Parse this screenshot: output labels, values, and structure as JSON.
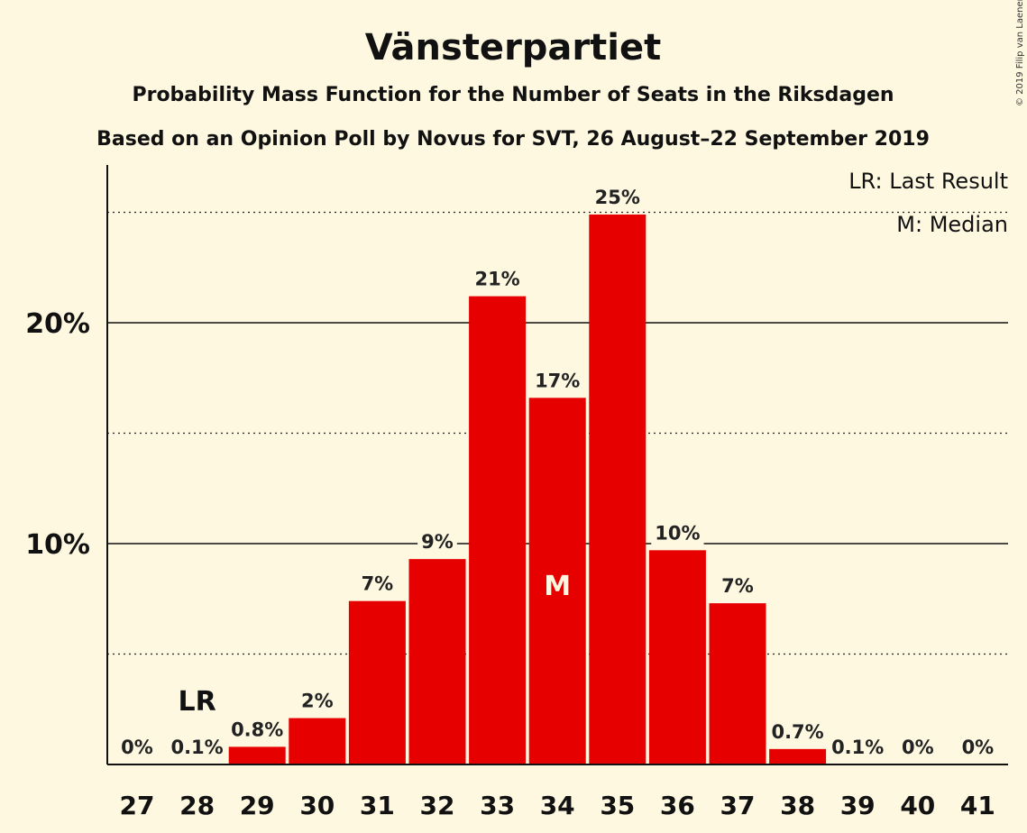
{
  "title": "Vänsterpartiet",
  "subtitle1": "Probability Mass Function for the Number of Seats in the Riksdagen",
  "subtitle2": "Based on an Opinion Poll by Novus for SVT, 26 August–22 September 2019",
  "copyright": "© 2019 Filip van Laenen",
  "legend": {
    "lr": "LR: Last Result",
    "median": "M: Median"
  },
  "colors": {
    "bar": "#E60000",
    "background": "#FEF8E1"
  },
  "chart_data": {
    "type": "bar",
    "categories": [
      "27",
      "28",
      "29",
      "30",
      "31",
      "32",
      "33",
      "34",
      "35",
      "36",
      "37",
      "38",
      "39",
      "40",
      "41"
    ],
    "values": [
      0,
      0.1,
      0.8,
      2.1,
      7.4,
      9.3,
      21.2,
      16.6,
      24.9,
      9.7,
      7.3,
      0.7,
      0.1,
      0,
      0
    ],
    "data_labels": [
      "0%",
      "0.1%",
      "0.8%",
      "2%",
      "7%",
      "9%",
      "21%",
      "17%",
      "25%",
      "10%",
      "7%",
      "0.7%",
      "0.1%",
      "0%",
      "0%"
    ],
    "ytick_values": [
      10,
      20
    ],
    "ytick_labels": [
      "10%",
      "20%"
    ],
    "minor_grid": [
      5,
      15,
      25
    ],
    "ylim": [
      0,
      27
    ],
    "last_result": {
      "category": "28",
      "label": "LR"
    },
    "median": {
      "category": "34",
      "label": "M"
    },
    "grid": true,
    "legend_position": "top-right"
  }
}
